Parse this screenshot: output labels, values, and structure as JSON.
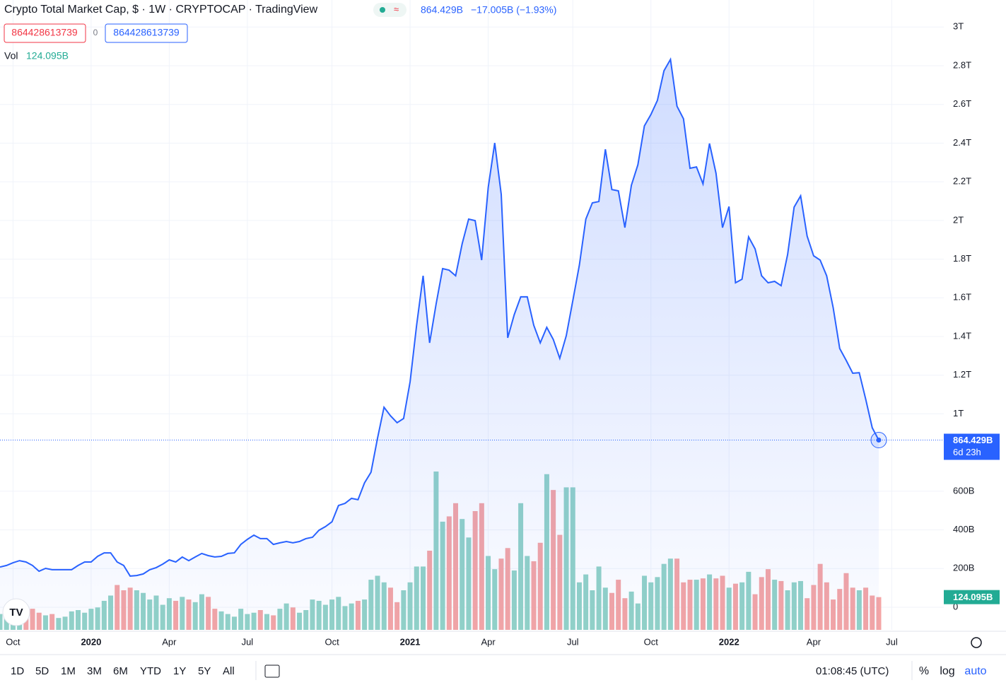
{
  "header": {
    "title": "Crypto Total Market Cap, $ · 1W · CRYPTOCAP · TradingView",
    "price": "864.429B",
    "change": "−17.005B (−1.93%)",
    "sell": "864428613739",
    "spread": "0",
    "buy": "864428613739",
    "volume": "124.095B"
  },
  "chart_data": {
    "type": "line",
    "categories": [
      null,
      null,
      "Oct",
      null,
      null,
      null,
      null,
      null,
      null,
      null,
      null,
      null,
      null,
      null,
      "2020",
      null,
      null,
      null,
      null,
      null,
      null,
      null,
      null,
      null,
      null,
      null,
      "Apr",
      null,
      null,
      null,
      null,
      null,
      null,
      null,
      null,
      null,
      null,
      null,
      "Jul",
      null,
      null,
      null,
      null,
      null,
      null,
      null,
      null,
      null,
      null,
      null,
      null,
      "Oct",
      null,
      null,
      null,
      null,
      null,
      null,
      null,
      null,
      null,
      null,
      null,
      "2021",
      null,
      null,
      null,
      null,
      null,
      null,
      null,
      null,
      null,
      null,
      null,
      "Apr",
      null,
      null,
      null,
      null,
      null,
      null,
      null,
      null,
      null,
      null,
      null,
      null,
      "Jul",
      null,
      null,
      null,
      null,
      null,
      null,
      null,
      null,
      null,
      null,
      null,
      "Oct",
      null,
      null,
      null,
      null,
      null,
      null,
      null,
      null,
      null,
      null,
      null,
      "2022",
      null,
      null,
      null,
      null,
      null,
      null,
      null,
      null,
      null,
      null,
      null,
      null,
      "Apr",
      null,
      null,
      null,
      null,
      null,
      null,
      null,
      null,
      null,
      null,
      null,
      "Jul"
    ],
    "series": [
      {
        "color": "#2962ff",
        "values": [
          208000000000.0,
          216000000000.0,
          230000000000.0,
          241000000000.0,
          234000000000.0,
          216000000000.0,
          186000000000.0,
          201000000000.0,
          194000000000.0,
          194000000000.0,
          194000000000.0,
          194000000000.0,
          216000000000.0,
          234000000000.0,
          234000000000.0,
          263000000000.0,
          281000000000.0,
          281000000000.0,
          234000000000.0,
          216000000000.0,
          161000000000.0,
          164000000000.0,
          172000000000.0,
          194000000000.0,
          205000000000.0,
          223000000000.0,
          245000000000.0,
          234000000000.0,
          260000000000.0,
          241000000000.0,
          260000000000.0,
          278000000000.0,
          267000000000.0,
          260000000000.0,
          263000000000.0,
          278000000000.0,
          281000000000.0,
          325000000000.0,
          351000000000.0,
          373000000000.0,
          355000000000.0,
          355000000000.0,
          325000000000.0,
          333000000000.0,
          340000000000.0,
          333000000000.0,
          340000000000.0,
          355000000000.0,
          362000000000.0,
          398000000000.0,
          417000000000.0,
          442000000000.0,
          526000000000.0,
          537000000000.0,
          563000000000.0,
          556000000000.0,
          643000000000.0,
          698000000000.0,
          874000000000.0,
          1034000000000.0,
          990000000000.0,
          954000000000.0,
          976000000000.0,
          1166000000000.0,
          1458000000000.0,
          1714000000000.0,
          1367000000000.0,
          1568000000000.0,
          1751000000000.0,
          1743000000000.0,
          1714000000000.0,
          1879000000000.0,
          2007000000000.0,
          1999000000000.0,
          1795000000000.0,
          2171000000000.0,
          2401000000000.0,
          2135000000000.0,
          1393000000000.0,
          1513000000000.0,
          1605000000000.0,
          1605000000000.0,
          1458000000000.0,
          1367000000000.0,
          1447000000000.0,
          1385000000000.0,
          1287000000000.0,
          1404000000000.0,
          1586000000000.0,
          1769000000000.0,
          2007000000000.0,
          2091000000000.0,
          2098000000000.0,
          2368000000000.0,
          2160000000000.0,
          2153000000000.0,
          1963000000000.0,
          2182000000000.0,
          2288000000000.0,
          2489000000000.0,
          2548000000000.0,
          2621000000000.0,
          2774000000000.0,
          2833000000000.0,
          2591000000000.0,
          2526000000000.0,
          2270000000000.0,
          2277000000000.0,
          2189000000000.0,
          2398000000000.0,
          2244000000000.0,
          1963000000000.0,
          2072000000000.0,
          1678000000000.0,
          1696000000000.0,
          1915000000000.0,
          1853000000000.0,
          1714000000000.0,
          1678000000000.0,
          1685000000000.0,
          1663000000000.0,
          1824000000000.0,
          2069000000000.0,
          2127000000000.0,
          1919000000000.0,
          1817000000000.0,
          1795000000000.0,
          1714000000000.0,
          1550000000000.0,
          1338000000000.0,
          1276000000000.0,
          1210000000000.0,
          1213000000000.0,
          1075000000000.0,
          928000000000.0,
          864428613739,
          null,
          null
        ]
      },
      {
        "name": "Vol",
        "type": "bar",
        "up_color": "#92d2c7",
        "down_color": "#f4a5a5",
        "values": [
          60000000000.0,
          55000000000.0,
          65000000000.0,
          50000000000.0,
          70000000000.0,
          80000000000.0,
          65000000000.0,
          55000000000.0,
          60000000000.0,
          45000000000.0,
          50000000000.0,
          70000000000.0,
          75000000000.0,
          65000000000.0,
          80000000000.0,
          85000000000.0,
          110000000000.0,
          130000000000.0,
          170000000000.0,
          150000000000.0,
          160000000000.0,
          150000000000.0,
          140000000000.0,
          115000000000.0,
          130000000000.0,
          95000000000.0,
          120000000000.0,
          110000000000.0,
          125000000000.0,
          115000000000.0,
          105000000000.0,
          135000000000.0,
          125000000000.0,
          80000000000.0,
          70000000000.0,
          60000000000.0,
          50000000000.0,
          80000000000.0,
          60000000000.0,
          65000000000.0,
          75000000000.0,
          60000000000.0,
          55000000000.0,
          80000000000.0,
          100000000000.0,
          85000000000.0,
          65000000000.0,
          75000000000.0,
          115000000000.0,
          110000000000.0,
          95000000000.0,
          115000000000.0,
          125000000000.0,
          90000000000.0,
          100000000000.0,
          110000000000.0,
          115000000000.0,
          190000000000.0,
          205000000000.0,
          180000000000.0,
          160000000000.0,
          105000000000.0,
          150000000000.0,
          180000000000.0,
          240000000000.0,
          240000000000.0,
          300000000000.0,
          600000000000.0,
          410000000000.0,
          430000000000.0,
          480000000000.0,
          420000000000.0,
          350000000000.0,
          450000000000.0,
          480000000000.0,
          280000000000.0,
          230000000000.0,
          270000000000.0,
          310000000000.0,
          225000000000.0,
          480000000000.0,
          280000000000.0,
          260000000000.0,
          330000000000.0,
          590000000000.0,
          530000000000.0,
          360000000000.0,
          540000000000.0,
          540000000000.0,
          180000000000.0,
          210000000000.0,
          150000000000.0,
          240000000000.0,
          160000000000.0,
          140000000000.0,
          190000000000.0,
          120000000000.0,
          145000000000.0,
          100000000000.0,
          205000000000.0,
          180000000000.0,
          200000000000.0,
          250000000000.0,
          270000000000.0,
          270000000000.0,
          180000000000.0,
          190000000000.0,
          190000000000.0,
          195000000000.0,
          210000000000.0,
          195000000000.0,
          205000000000.0,
          160000000000.0,
          175000000000.0,
          180000000000.0,
          220000000000.0,
          135000000000.0,
          200000000000.0,
          230000000000.0,
          190000000000.0,
          185000000000.0,
          150000000000.0,
          180000000000.0,
          185000000000.0,
          120000000000.0,
          170000000000.0,
          250000000000.0,
          180000000000.0,
          115000000000.0,
          155000000000.0,
          215000000000.0,
          160000000000.0,
          150000000000.0,
          160000000000.0,
          130000000000.0,
          124095000000,
          null,
          null
        ]
      }
    ],
    "ylim": [
      -117000000000.0,
      3140000000000.0
    ],
    "yticks": [
      0,
      {
        "value": 200000000000.0,
        "label": "200B"
      },
      {
        "value": 400000000000.0,
        "label": "400B"
      },
      {
        "value": 600000000000.0,
        "label": "600B"
      },
      {
        "value": 1000000000000.0,
        "label": "1T"
      },
      {
        "value": 1200000000000.0,
        "label": "1.2T"
      },
      {
        "value": 1400000000000.0,
        "label": "1.4T"
      },
      {
        "value": 1600000000000.0,
        "label": "1.6T"
      },
      {
        "value": 1800000000000.0,
        "label": "1.8T"
      },
      {
        "value": 2000000000000.0,
        "label": "2T"
      },
      {
        "value": 2200000000000.0,
        "label": "2.2T"
      },
      {
        "value": 2400000000000.0,
        "label": "2.4T"
      },
      {
        "value": 2600000000000.0,
        "label": "2.6T"
      },
      {
        "value": 2800000000000.0,
        "label": "2.8T"
      },
      {
        "value": 3000000000000.0,
        "label": "3T"
      }
    ],
    "grid": true,
    "countdown": "6d 23h"
  },
  "toolbar": {
    "ranges": [
      "1D",
      "5D",
      "1M",
      "3M",
      "6M",
      "YTD",
      "1Y",
      "5Y",
      "All"
    ],
    "time": "01:08:45 (UTC)",
    "options": [
      "%",
      "log",
      "auto"
    ]
  }
}
